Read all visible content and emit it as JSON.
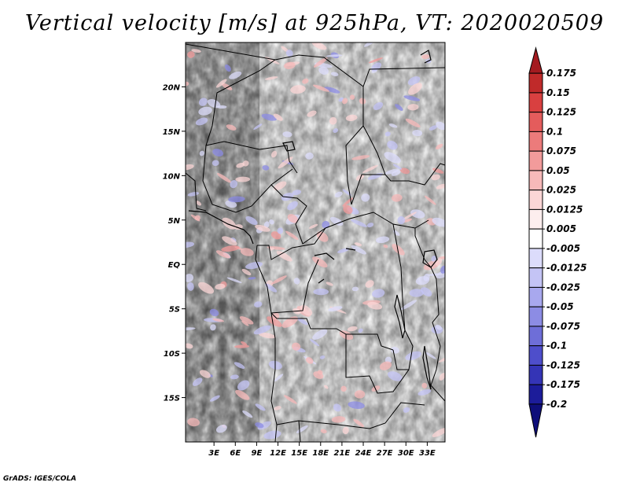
{
  "title": "Vertical velocity [m/s] at 925hPa, VT: 2020020509",
  "credit": "GrADS: IGES/COLA",
  "map": {
    "lon_range": [
      -1,
      35.5
    ],
    "lat_range": [
      -20,
      25
    ],
    "lat_ticks": [
      {
        "value": 20,
        "label": "20N"
      },
      {
        "value": 15,
        "label": "15N"
      },
      {
        "value": 10,
        "label": "10N"
      },
      {
        "value": 5,
        "label": "5N"
      },
      {
        "value": 0,
        "label": "EQ"
      },
      {
        "value": -5,
        "label": "5S"
      },
      {
        "value": -10,
        "label": "10S"
      },
      {
        "value": -15,
        "label": "15S"
      }
    ],
    "lon_ticks": [
      {
        "value": 3,
        "label": "3E"
      },
      {
        "value": 6,
        "label": "6E"
      },
      {
        "value": 9,
        "label": "9E"
      },
      {
        "value": 12,
        "label": "12E"
      },
      {
        "value": 15,
        "label": "15E"
      },
      {
        "value": 18,
        "label": "18E"
      },
      {
        "value": 21,
        "label": "21E"
      },
      {
        "value": 24,
        "label": "24E"
      },
      {
        "value": 27,
        "label": "27E"
      },
      {
        "value": 30,
        "label": "30E"
      },
      {
        "value": 33,
        "label": "33E"
      }
    ]
  },
  "colorbar": {
    "levels": [
      "0.175",
      "0.15",
      "0.125",
      "0.1",
      "0.075",
      "0.05",
      "0.025",
      "0.0125",
      "0.005",
      "-0.005",
      "-0.0125",
      "-0.025",
      "-0.05",
      "-0.075",
      "-0.1",
      "-0.125",
      "-0.175",
      "-0.2"
    ],
    "colors": [
      "#a41b20",
      "#c02a2a",
      "#d94040",
      "#e45c5c",
      "#ec7b7b",
      "#f29b9b",
      "#f7b9b9",
      "#fbd6d6",
      "#fdeeee",
      "#ffffff",
      "#dcdcfb",
      "#c4c4f5",
      "#a8a8ee",
      "#8c8ce4",
      "#6e6ed8",
      "#4e4ecb",
      "#3434b6",
      "#1c1c9a",
      "#0e0e7a"
    ]
  }
}
